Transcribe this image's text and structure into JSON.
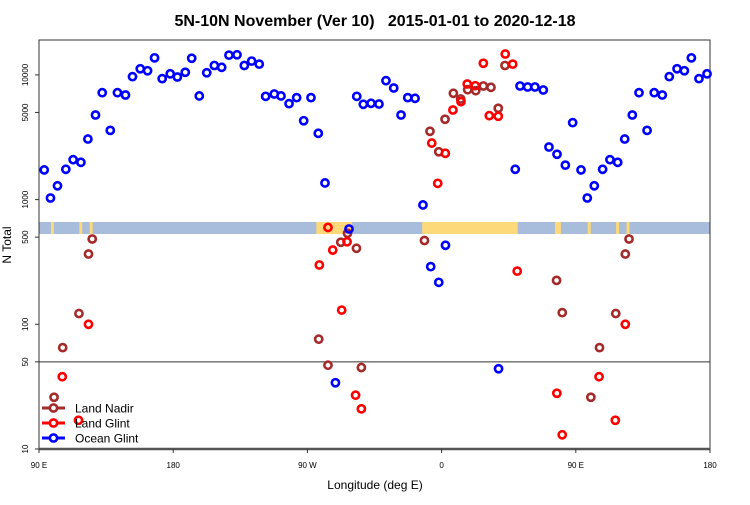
{
  "chart_data": {
    "type": "scatter",
    "title": "5N-10N November (Ver 10)   2015-01-01 to 2020-12-18",
    "xlabel": "Longitude (deg E)",
    "ylabel": "N Total",
    "y_scale": "log",
    "ylim": [
      10,
      19000
    ],
    "xlim_unwrapped_deg": [
      90,
      540
    ],
    "x_ticks": [
      {
        "value": 90,
        "label": "90 E"
      },
      {
        "value": 180,
        "label": "180"
      },
      {
        "value": 270,
        "label": "90 W"
      },
      {
        "value": 360,
        "label": "0"
      },
      {
        "value": 450,
        "label": "90 E"
      },
      {
        "value": 540,
        "label": "180"
      }
    ],
    "y_ticks": [
      {
        "value": 10000,
        "label": "10000"
      },
      {
        "value": 5000,
        "label": "5000"
      },
      {
        "value": 1000,
        "label": "1000"
      },
      {
        "value": 500,
        "label": "500"
      },
      {
        "value": 100,
        "label": "100"
      },
      {
        "value": 50,
        "label": "50"
      },
      {
        "value": 10,
        "label": "10"
      }
    ],
    "reference_line_y": 50,
    "grid": false,
    "legend_position": "bottom-left",
    "map_strip": {
      "ocean_color": "#a7bddb",
      "land_color": "#fdd97a",
      "land_lon_ranges": [
        [
          -84,
          -60
        ],
        [
          -13,
          51
        ],
        [
          76,
          80
        ],
        [
          98,
          100
        ],
        [
          117,
          119
        ],
        [
          124,
          126
        ]
      ]
    },
    "series": [
      {
        "name": "Land Nadir",
        "color": "#a52a2a",
        "points": [
          [
            -82.4,
            76
          ],
          [
            -76.2,
            47
          ],
          [
            -67.6,
            455
          ],
          [
            -63.1,
            537
          ],
          [
            -57.1,
            407
          ],
          [
            -53.8,
            45
          ],
          [
            -11.5,
            470
          ],
          [
            -7.8,
            3530
          ],
          [
            -1.9,
            2420
          ],
          [
            2.3,
            4410
          ],
          [
            7.9,
            7120
          ],
          [
            12.8,
            6410
          ],
          [
            17.5,
            7610
          ],
          [
            22.9,
            7470
          ],
          [
            28.0,
            8150
          ],
          [
            33.1,
            7950
          ],
          [
            38.0,
            5400
          ],
          [
            42.5,
            11900
          ],
          [
            77.1,
            225
          ],
          [
            80.9,
            124
          ],
          [
            100.1,
            26
          ],
          [
            105.9,
            65
          ],
          [
            116.8,
            122
          ],
          [
            123.2,
            366
          ],
          [
            125.7,
            483
          ]
        ]
      },
      {
        "name": "Land Glint",
        "color": "#ff0000",
        "points": [
          [
            -82.0,
            299
          ],
          [
            -76.2,
            598
          ],
          [
            -73.0,
            394
          ],
          [
            -67.0,
            130
          ],
          [
            -63.4,
            459
          ],
          [
            -57.7,
            27
          ],
          [
            -53.8,
            21
          ],
          [
            -6.6,
            2840
          ],
          [
            -2.6,
            1350
          ],
          [
            2.5,
            2350
          ],
          [
            7.6,
            5230
          ],
          [
            13.0,
            6100
          ],
          [
            17.2,
            8450
          ],
          [
            22.6,
            8190
          ],
          [
            28.0,
            12400
          ],
          [
            32.0,
            4710
          ],
          [
            38.0,
            4660
          ],
          [
            42.7,
            14700
          ],
          [
            47.7,
            12200
          ],
          [
            50.7,
            267
          ],
          [
            77.3,
            28
          ],
          [
            80.9,
            13
          ],
          [
            105.6,
            38
          ],
          [
            116.5,
            17
          ],
          [
            123.2,
            100
          ]
        ]
      },
      {
        "name": "Ocean Glint",
        "color": "#0000ff",
        "points": [
          [
            -177.2,
            9620
          ],
          [
            -171.9,
            10500
          ],
          [
            -167.6,
            13600
          ],
          [
            -162.5,
            6780
          ],
          [
            -157.5,
            10400
          ],
          [
            -152.4,
            11900
          ],
          [
            -147.5,
            11500
          ],
          [
            -142.6,
            14400
          ],
          [
            -137.2,
            14500
          ],
          [
            -132.3,
            11900
          ],
          [
            -127.4,
            12900
          ],
          [
            -122.3,
            12200
          ],
          [
            -118.0,
            6730
          ],
          [
            -112.2,
            7030
          ],
          [
            -107.7,
            6780
          ],
          [
            -102.3,
            5880
          ],
          [
            -97.2,
            6570
          ],
          [
            -92.5,
            4290
          ],
          [
            -87.6,
            6570
          ],
          [
            -82.7,
            3400
          ],
          [
            -78.2,
            1360
          ],
          [
            -71.2,
            34
          ],
          [
            -62.1,
            581
          ],
          [
            -56.9,
            6730
          ],
          [
            -52.5,
            5810
          ],
          [
            -47.3,
            5920
          ],
          [
            -42.0,
            5840
          ],
          [
            -37.3,
            8990
          ],
          [
            -32.1,
            7850
          ],
          [
            -27.2,
            4770
          ],
          [
            -22.7,
            6570
          ],
          [
            -17.8,
            6490
          ],
          [
            -12.5,
            906
          ],
          [
            -7.3,
            290
          ],
          [
            -1.9,
            217
          ],
          [
            2.6,
            430
          ],
          [
            38.2,
            44
          ],
          [
            49.4,
            1750
          ],
          [
            52.6,
            8150
          ],
          [
            57.7,
            8000
          ],
          [
            62.6,
            8000
          ],
          [
            68.2,
            7570
          ],
          [
            72.0,
            2640
          ],
          [
            77.4,
            2310
          ],
          [
            83.0,
            1890
          ],
          [
            87.9,
            4140
          ],
          [
            93.5,
            1730
          ],
          [
            97.7,
            1030
          ],
          [
            102.4,
            1290
          ],
          [
            108.0,
            1750
          ],
          [
            112.9,
            2090
          ],
          [
            118.1,
            1990
          ],
          [
            122.8,
            3060
          ],
          [
            127.9,
            4770
          ],
          [
            132.4,
            7200
          ],
          [
            137.8,
            3590
          ],
          [
            142.6,
            7200
          ],
          [
            148.0,
            6900
          ],
          [
            152.7,
            9680
          ],
          [
            157.9,
            11200
          ],
          [
            162.8,
            10800
          ],
          [
            167.5,
            13700
          ],
          [
            172.6,
            9330
          ],
          [
            178.0,
            10200
          ]
        ]
      }
    ]
  }
}
